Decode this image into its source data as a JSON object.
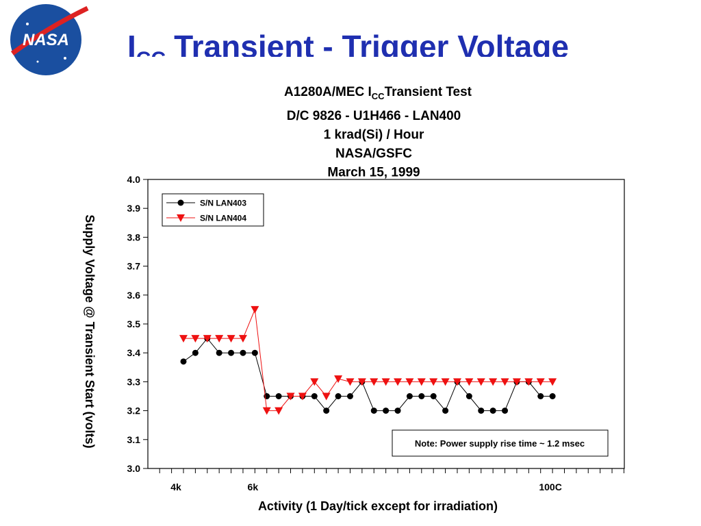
{
  "logo_text": "NASA",
  "slide_title": {
    "main": "I",
    "sub": "CC",
    "rest": "Transient - Trigger Voltage"
  },
  "chart_data": {
    "type": "line",
    "title_first_line": {
      "main": "A1280A/MEC I",
      "sub": "CC",
      "rest": "Transient Test"
    },
    "subtitle_lines": [
      "D/C 9826 - U1H466 - LAN400",
      "1 krad(Si) / Hour",
      "NASA/GSFC",
      "March 15, 1999"
    ],
    "x_label": "Activity (1 Day/tick except for irradiation)",
    "y_label": "Supply Voltage @ Transient Start (volts)",
    "annotation": "Note: Power supply rise time ~ 1.2 msec",
    "categories": [
      "4k",
      null,
      null,
      null,
      null,
      null,
      "6k",
      null,
      null,
      null,
      null,
      null,
      null,
      null,
      null,
      null,
      null,
      null,
      null,
      null,
      null,
      null,
      null,
      null,
      null,
      null,
      null,
      null,
      null,
      null,
      null,
      "100C"
    ],
    "ylim": [
      3.0,
      4.0
    ],
    "yticks": [
      {
        "value": 3.0,
        "label": "3.0"
      },
      3.1,
      3.2,
      3.3,
      3.4,
      3.5,
      3.6,
      3.7,
      3.8,
      3.9,
      {
        "value": 4.0,
        "label": "4.0"
      }
    ],
    "legend": "top-left",
    "series": [
      {
        "name": "S/N LAN403",
        "color": "#000000",
        "marker": "circle",
        "values": [
          3.37,
          3.4,
          3.45,
          3.4,
          3.4,
          3.4,
          3.4,
          3.25,
          3.25,
          3.25,
          3.25,
          3.25,
          3.2,
          3.25,
          3.25,
          3.3,
          3.2,
          3.2,
          3.2,
          3.25,
          3.25,
          3.25,
          3.2,
          3.3,
          3.25,
          3.2,
          3.2,
          3.2,
          3.3,
          3.3,
          3.25,
          3.25
        ]
      },
      {
        "name": "S/N LAN404",
        "color": "#ee1111",
        "marker": "triangle-down",
        "values": [
          3.45,
          3.45,
          3.45,
          3.45,
          3.45,
          3.45,
          3.55,
          3.2,
          3.2,
          3.25,
          3.25,
          3.3,
          3.25,
          3.31,
          3.3,
          3.3,
          3.3,
          3.3,
          3.3,
          3.3,
          3.3,
          3.3,
          3.3,
          3.3,
          3.3,
          3.3,
          3.3,
          3.3,
          3.3,
          3.3,
          3.3,
          3.3
        ]
      }
    ]
  }
}
